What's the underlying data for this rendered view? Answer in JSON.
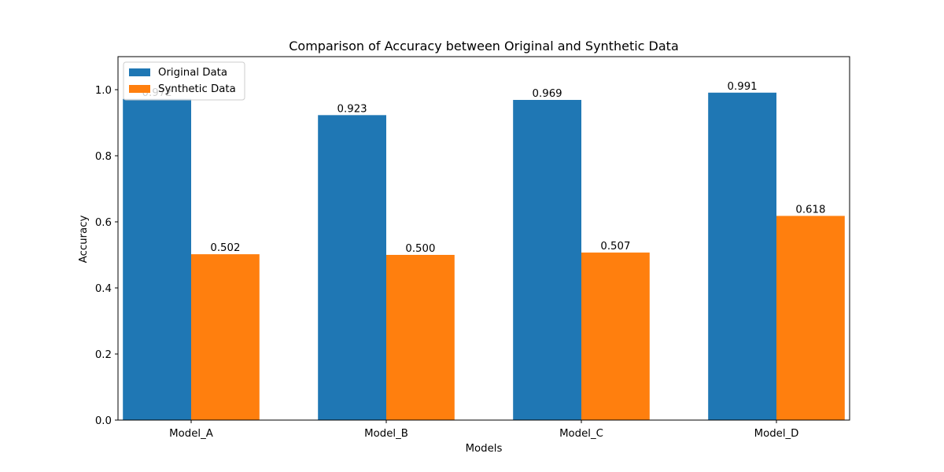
{
  "chart_data": {
    "type": "bar",
    "title": "Comparison of Accuracy between Original and Synthetic Data",
    "xlabel": "Models",
    "ylabel": "Accuracy",
    "categories": [
      "Model_A",
      "Model_B",
      "Model_C",
      "Model_D"
    ],
    "series": [
      {
        "name": "Original Data",
        "color": "#1f77b4",
        "values": [
          0.972,
          0.923,
          0.969,
          0.991
        ],
        "labels": [
          "0.972",
          "0.923",
          "0.969",
          "0.991"
        ]
      },
      {
        "name": "Synthetic Data",
        "color": "#ff7f0e",
        "values": [
          0.502,
          0.5,
          0.507,
          0.618
        ],
        "labels": [
          "0.502",
          "0.500",
          "0.507",
          "0.618"
        ]
      }
    ],
    "ylim": [
      0,
      1.1
    ],
    "yticks": [
      0.0,
      0.2,
      0.4,
      0.6,
      0.8,
      1.0
    ],
    "ytick_labels": [
      "0.0",
      "0.2",
      "0.4",
      "0.6",
      "0.8",
      "1.0"
    ],
    "grid": false,
    "legend_position": "upper-left"
  }
}
